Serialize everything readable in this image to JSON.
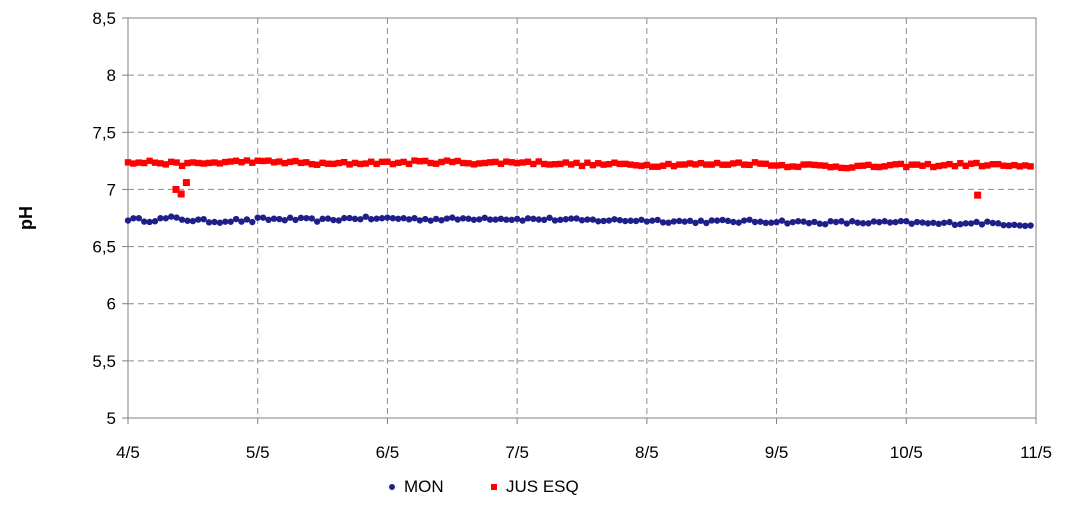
{
  "chart_data": {
    "type": "scatter",
    "title": "",
    "xlabel": "",
    "ylabel": "pH",
    "ylim": [
      5,
      8.5
    ],
    "yticks": [
      "5",
      "5,5",
      "6",
      "6,5",
      "7",
      "7,5",
      "8",
      "8,5"
    ],
    "xlim": [
      "4/5",
      "11/5"
    ],
    "xticks": [
      "4/5",
      "5/5",
      "6/5",
      "7/5",
      "8/5",
      "9/5",
      "10/5",
      "11/5"
    ],
    "grid": true,
    "legend_position": "bottom",
    "x_resolution": "hourly",
    "series": [
      {
        "name": "MON",
        "color": "#1f1f8a",
        "marker": "circle",
        "segments": [
          {
            "start_day": 0,
            "end_day": 1,
            "values": [
              6.74,
              6.73,
              6.75,
              6.73,
              6.72,
              6.73,
              6.72
            ]
          },
          {
            "start_day": 1,
            "end_day": 2,
            "values": [
              6.74,
              6.74,
              6.73,
              6.75,
              6.74
            ]
          },
          {
            "start_day": 2,
            "end_day": 3,
            "values": [
              6.75,
              6.74,
              6.74,
              6.75,
              6.74
            ]
          },
          {
            "start_day": 3,
            "end_day": 4,
            "values": [
              6.74,
              6.74,
              6.73,
              6.73,
              6.73
            ]
          },
          {
            "start_day": 4,
            "end_day": 5,
            "values": [
              6.73,
              6.72,
              6.72,
              6.72,
              6.72
            ]
          },
          {
            "start_day": 5,
            "end_day": 6,
            "values": [
              6.72,
              6.71,
              6.71,
              6.71,
              6.71
            ]
          },
          {
            "start_day": 6,
            "end_day": 7,
            "values": [
              6.71,
              6.7,
              6.71,
              6.7,
              6.69
            ]
          }
        ]
      },
      {
        "name": "JUS ESQ",
        "color": "#ff0000",
        "marker": "square",
        "segments": [
          {
            "start_day": 0,
            "end_day": 1,
            "values": [
              7.23,
              7.24,
              7.22,
              7.23,
              7.24,
              7.25
            ]
          },
          {
            "start_day": 1,
            "end_day": 2,
            "values": [
              7.24,
              7.24,
              7.22,
              7.23,
              7.24
            ]
          },
          {
            "start_day": 2,
            "end_day": 3,
            "values": [
              7.23,
              7.24,
              7.24,
              7.23,
              7.24
            ]
          },
          {
            "start_day": 3,
            "end_day": 4,
            "values": [
              7.24,
              7.23,
              7.22,
              7.22,
              7.22
            ]
          },
          {
            "start_day": 4,
            "end_day": 5,
            "values": [
              7.21,
              7.22,
              7.22,
              7.23,
              7.22
            ]
          },
          {
            "start_day": 5,
            "end_day": 6,
            "values": [
              7.21,
              7.21,
              7.2,
              7.2,
              7.21
            ]
          },
          {
            "start_day": 6,
            "end_day": 7,
            "values": [
              7.21,
              7.21,
              7.22,
              7.21,
              7.19
            ]
          }
        ],
        "outliers": [
          {
            "x_day": 0.37,
            "y": 7.0
          },
          {
            "x_day": 0.41,
            "y": 6.96
          },
          {
            "x_day": 0.45,
            "y": 7.06
          },
          {
            "x_day": 6.55,
            "y": 6.95
          }
        ]
      }
    ]
  }
}
